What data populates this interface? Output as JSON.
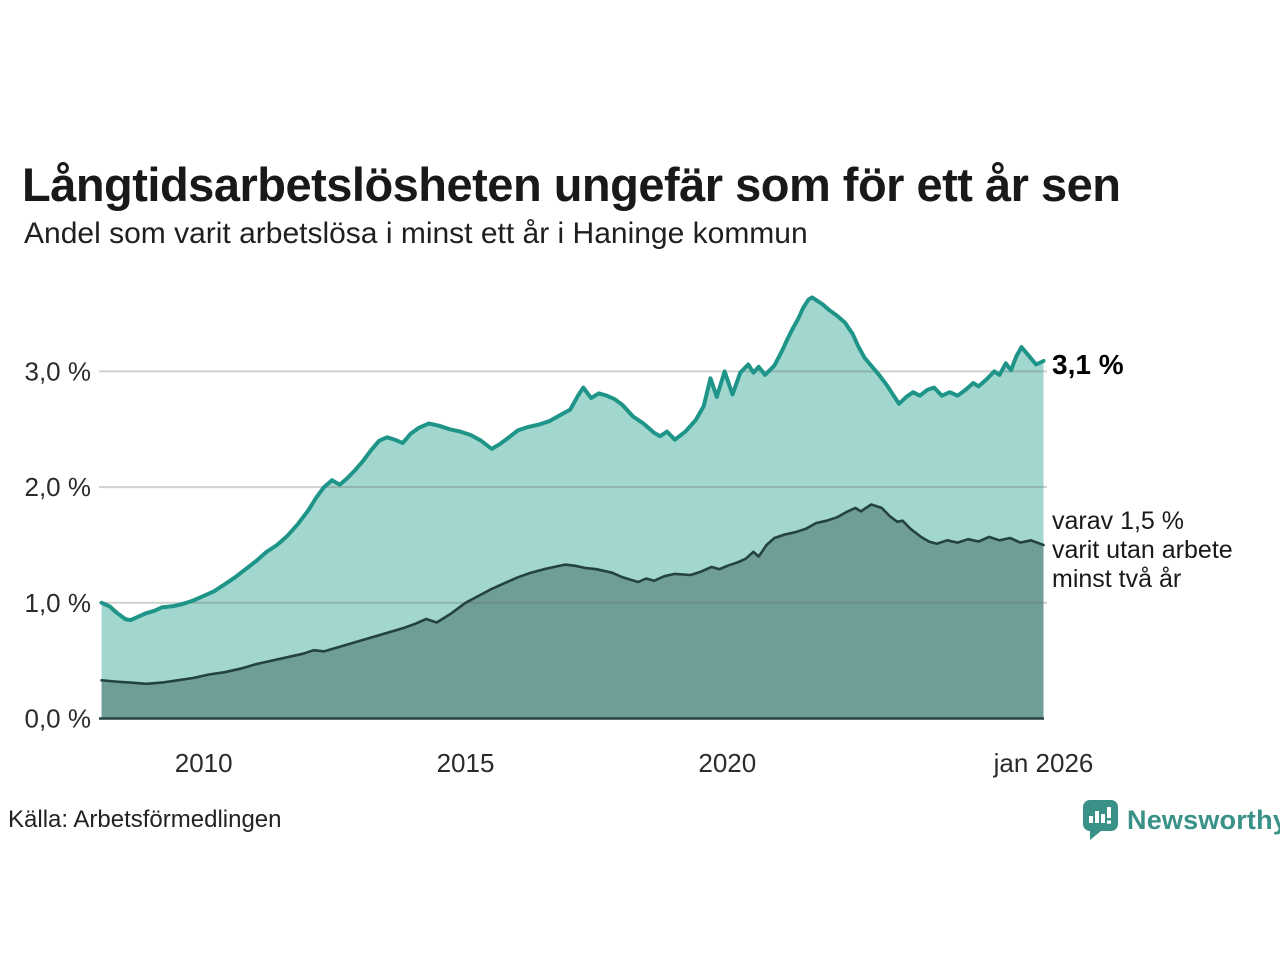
{
  "header": {
    "title": "Långtidsarbetslösheten ungefär som för ett år sen",
    "subtitle": "Andel som varit arbetslösa i minst ett år i Haninge kommun"
  },
  "annotations": {
    "total": "3,1 %",
    "subset": "varav 1,5 %\nvarit utan arbete\nminst två år"
  },
  "footer": {
    "source": "Källa: Arbetsförmedlingen",
    "brand": "Newsworthy"
  },
  "colors": {
    "total_line": "#1f9589",
    "total_fill": "#a2d7cf",
    "subset_line": "#24433e",
    "subset_fill": "#6f9e97",
    "gridline": "rgba(100,100,100,0.30)",
    "brand_teal": "#3a9188",
    "text_dark": "#191919"
  },
  "chart_data": {
    "type": "area",
    "title": "Långtidsarbetslösheten ungefär som för ett år sen",
    "subtitle": "Andel som varit arbetslösa i minst ett år i Haninge kommun",
    "source": "Källa: Arbetsförmedlingen",
    "unit": "%",
    "grid": true,
    "legend_position": "right-edge-labels",
    "x_axis": {
      "min": 2008.0,
      "max": 2026.05,
      "ticks": [
        {
          "x": 2010,
          "label": "2010"
        },
        {
          "x": 2015,
          "label": "2015"
        },
        {
          "x": 2020,
          "label": "2020"
        },
        {
          "x": 2026.04,
          "label": "jan 2026"
        }
      ]
    },
    "y_axis": {
      "min": 0,
      "max": 3.8,
      "ticks": [
        {
          "y": 0,
          "label": "0,0 %"
        },
        {
          "y": 1,
          "label": "1,0 %"
        },
        {
          "y": 2,
          "label": "2,0 %"
        },
        {
          "y": 3,
          "label": "3,0 %"
        }
      ]
    },
    "series": [
      {
        "name": "Andel som varit arbetslösa i minst ett år",
        "end_label": "3,1 %",
        "end_value": 3.1,
        "color": "#1f9589",
        "fill": "#a2d7cf",
        "stroke_width": 4,
        "points": [
          [
            2008.05,
            1.0
          ],
          [
            2008.2,
            0.97
          ],
          [
            2008.35,
            0.91
          ],
          [
            2008.5,
            0.86
          ],
          [
            2008.6,
            0.85
          ],
          [
            2008.75,
            0.88
          ],
          [
            2008.9,
            0.91
          ],
          [
            2009.05,
            0.93
          ],
          [
            2009.2,
            0.96
          ],
          [
            2009.4,
            0.97
          ],
          [
            2009.6,
            0.99
          ],
          [
            2009.8,
            1.02
          ],
          [
            2010.0,
            1.06
          ],
          [
            2010.2,
            1.1
          ],
          [
            2010.4,
            1.16
          ],
          [
            2010.6,
            1.22
          ],
          [
            2010.8,
            1.29
          ],
          [
            2011.0,
            1.36
          ],
          [
            2011.2,
            1.44
          ],
          [
            2011.4,
            1.5
          ],
          [
            2011.6,
            1.58
          ],
          [
            2011.8,
            1.68
          ],
          [
            2012.0,
            1.8
          ],
          [
            2012.15,
            1.91
          ],
          [
            2012.3,
            2.0
          ],
          [
            2012.45,
            2.06
          ],
          [
            2012.6,
            2.02
          ],
          [
            2012.75,
            2.08
          ],
          [
            2012.9,
            2.15
          ],
          [
            2013.05,
            2.23
          ],
          [
            2013.2,
            2.32
          ],
          [
            2013.35,
            2.4
          ],
          [
            2013.5,
            2.43
          ],
          [
            2013.65,
            2.41
          ],
          [
            2013.8,
            2.38
          ],
          [
            2013.95,
            2.46
          ],
          [
            2014.1,
            2.51
          ],
          [
            2014.3,
            2.55
          ],
          [
            2014.5,
            2.53
          ],
          [
            2014.7,
            2.5
          ],
          [
            2014.9,
            2.48
          ],
          [
            2015.1,
            2.45
          ],
          [
            2015.3,
            2.4
          ],
          [
            2015.5,
            2.33
          ],
          [
            2015.65,
            2.37
          ],
          [
            2015.8,
            2.42
          ],
          [
            2016.0,
            2.49
          ],
          [
            2016.2,
            2.52
          ],
          [
            2016.4,
            2.54
          ],
          [
            2016.6,
            2.57
          ],
          [
            2016.8,
            2.62
          ],
          [
            2017.0,
            2.67
          ],
          [
            2017.15,
            2.79
          ],
          [
            2017.25,
            2.86
          ],
          [
            2017.4,
            2.77
          ],
          [
            2017.55,
            2.81
          ],
          [
            2017.7,
            2.79
          ],
          [
            2017.85,
            2.76
          ],
          [
            2018.0,
            2.71
          ],
          [
            2018.2,
            2.61
          ],
          [
            2018.4,
            2.55
          ],
          [
            2018.6,
            2.47
          ],
          [
            2018.72,
            2.44
          ],
          [
            2018.85,
            2.48
          ],
          [
            2019.0,
            2.41
          ],
          [
            2019.2,
            2.48
          ],
          [
            2019.4,
            2.58
          ],
          [
            2019.55,
            2.7
          ],
          [
            2019.68,
            2.94
          ],
          [
            2019.8,
            2.78
          ],
          [
            2019.95,
            3.0
          ],
          [
            2020.1,
            2.8
          ],
          [
            2020.25,
            2.99
          ],
          [
            2020.4,
            3.06
          ],
          [
            2020.5,
            2.99
          ],
          [
            2020.6,
            3.04
          ],
          [
            2020.72,
            2.97
          ],
          [
            2020.9,
            3.05
          ],
          [
            2021.05,
            3.18
          ],
          [
            2021.15,
            3.28
          ],
          [
            2021.25,
            3.37
          ],
          [
            2021.35,
            3.45
          ],
          [
            2021.45,
            3.55
          ],
          [
            2021.55,
            3.62
          ],
          [
            2021.62,
            3.64
          ],
          [
            2021.72,
            3.61
          ],
          [
            2021.82,
            3.58
          ],
          [
            2021.95,
            3.53
          ],
          [
            2022.1,
            3.48
          ],
          [
            2022.25,
            3.42
          ],
          [
            2022.4,
            3.32
          ],
          [
            2022.5,
            3.22
          ],
          [
            2022.62,
            3.12
          ],
          [
            2022.75,
            3.05
          ],
          [
            2022.9,
            2.97
          ],
          [
            2023.05,
            2.88
          ],
          [
            2023.28,
            2.72
          ],
          [
            2023.42,
            2.78
          ],
          [
            2023.55,
            2.82
          ],
          [
            2023.68,
            2.79
          ],
          [
            2023.82,
            2.84
          ],
          [
            2023.95,
            2.86
          ],
          [
            2024.1,
            2.79
          ],
          [
            2024.25,
            2.82
          ],
          [
            2024.4,
            2.79
          ],
          [
            2024.55,
            2.84
          ],
          [
            2024.7,
            2.9
          ],
          [
            2024.8,
            2.87
          ],
          [
            2024.95,
            2.93
          ],
          [
            2025.1,
            3.0
          ],
          [
            2025.2,
            2.97
          ],
          [
            2025.32,
            3.07
          ],
          [
            2025.42,
            3.01
          ],
          [
            2025.52,
            3.13
          ],
          [
            2025.62,
            3.21
          ],
          [
            2025.75,
            3.14
          ],
          [
            2025.9,
            3.06
          ],
          [
            2026.04,
            3.09
          ]
        ]
      },
      {
        "name": "varav utan arbete minst två år",
        "end_label": "varav 1,5 % varit utan arbete minst två år",
        "end_value": 1.5,
        "color": "#24433e",
        "fill": "#6f9e97",
        "stroke_width": 2.6,
        "points": [
          [
            2008.05,
            0.33
          ],
          [
            2008.3,
            0.32
          ],
          [
            2008.6,
            0.31
          ],
          [
            2008.9,
            0.3
          ],
          [
            2009.2,
            0.31
          ],
          [
            2009.5,
            0.33
          ],
          [
            2009.8,
            0.35
          ],
          [
            2010.1,
            0.38
          ],
          [
            2010.4,
            0.4
          ],
          [
            2010.7,
            0.43
          ],
          [
            2011.0,
            0.47
          ],
          [
            2011.3,
            0.5
          ],
          [
            2011.6,
            0.53
          ],
          [
            2011.9,
            0.56
          ],
          [
            2012.1,
            0.59
          ],
          [
            2012.3,
            0.58
          ],
          [
            2012.6,
            0.62
          ],
          [
            2012.9,
            0.66
          ],
          [
            2013.2,
            0.7
          ],
          [
            2013.5,
            0.74
          ],
          [
            2013.8,
            0.78
          ],
          [
            2014.05,
            0.82
          ],
          [
            2014.25,
            0.86
          ],
          [
            2014.45,
            0.83
          ],
          [
            2014.7,
            0.9
          ],
          [
            2015.0,
            1.0
          ],
          [
            2015.25,
            1.06
          ],
          [
            2015.5,
            1.12
          ],
          [
            2015.75,
            1.17
          ],
          [
            2016.0,
            1.22
          ],
          [
            2016.25,
            1.26
          ],
          [
            2016.5,
            1.29
          ],
          [
            2016.7,
            1.31
          ],
          [
            2016.9,
            1.33
          ],
          [
            2017.1,
            1.32
          ],
          [
            2017.3,
            1.3
          ],
          [
            2017.5,
            1.29
          ],
          [
            2017.8,
            1.26
          ],
          [
            2018.0,
            1.22
          ],
          [
            2018.3,
            1.18
          ],
          [
            2018.45,
            1.21
          ],
          [
            2018.6,
            1.19
          ],
          [
            2018.8,
            1.23
          ],
          [
            2019.0,
            1.25
          ],
          [
            2019.3,
            1.24
          ],
          [
            2019.5,
            1.27
          ],
          [
            2019.7,
            1.31
          ],
          [
            2019.85,
            1.29
          ],
          [
            2020.0,
            1.32
          ],
          [
            2020.2,
            1.35
          ],
          [
            2020.35,
            1.38
          ],
          [
            2020.5,
            1.44
          ],
          [
            2020.6,
            1.4
          ],
          [
            2020.75,
            1.5
          ],
          [
            2020.9,
            1.56
          ],
          [
            2021.1,
            1.59
          ],
          [
            2021.3,
            1.61
          ],
          [
            2021.5,
            1.64
          ],
          [
            2021.7,
            1.69
          ],
          [
            2021.9,
            1.71
          ],
          [
            2022.1,
            1.74
          ],
          [
            2022.3,
            1.79
          ],
          [
            2022.45,
            1.82
          ],
          [
            2022.55,
            1.79
          ],
          [
            2022.75,
            1.85
          ],
          [
            2022.95,
            1.82
          ],
          [
            2023.1,
            1.75
          ],
          [
            2023.25,
            1.7
          ],
          [
            2023.35,
            1.71
          ],
          [
            2023.5,
            1.64
          ],
          [
            2023.7,
            1.57
          ],
          [
            2023.85,
            1.53
          ],
          [
            2024.0,
            1.51
          ],
          [
            2024.2,
            1.54
          ],
          [
            2024.4,
            1.52
          ],
          [
            2024.6,
            1.55
          ],
          [
            2024.8,
            1.53
          ],
          [
            2025.0,
            1.57
          ],
          [
            2025.2,
            1.54
          ],
          [
            2025.4,
            1.56
          ],
          [
            2025.6,
            1.52
          ],
          [
            2025.8,
            1.54
          ],
          [
            2026.04,
            1.5
          ]
        ]
      }
    ]
  }
}
